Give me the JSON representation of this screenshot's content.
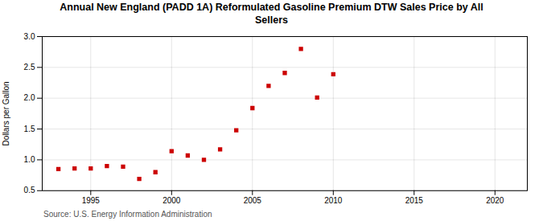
{
  "chart_data": {
    "type": "scatter",
    "title": "Annual New England (PADD 1A) Reformulated Gasoline Premium DTW Sales Price by All\nSellers",
    "y_label": "Dollars per Gallon",
    "annotations": [
      "Source: U.S. Energy Information Administration"
    ],
    "x": [
      1993,
      1994,
      1995,
      1996,
      1997,
      1998,
      1999,
      2000,
      2001,
      2002,
      2003,
      2004,
      2005,
      2006,
      2007,
      2008,
      2009,
      2010
    ],
    "values": [
      0.85,
      0.86,
      0.86,
      0.9,
      0.89,
      0.69,
      0.8,
      1.14,
      1.07,
      1.0,
      1.17,
      1.48,
      1.84,
      2.2,
      2.41,
      2.8,
      2.01,
      2.39
    ],
    "color": "#cc0000",
    "marker": "square",
    "xlim": [
      1992,
      2022
    ],
    "xticks": [
      1995,
      2000,
      2005,
      2010,
      2015,
      2020
    ],
    "ylim": [
      0.5,
      3.0
    ],
    "yticks": [
      0.5,
      {
        "value": 1.0,
        "label": "1.0"
      },
      1.5,
      {
        "value": 2.0,
        "label": "2.0"
      },
      2.5,
      {
        "value": 3.0,
        "label": "3.0"
      }
    ],
    "grid": true
  }
}
